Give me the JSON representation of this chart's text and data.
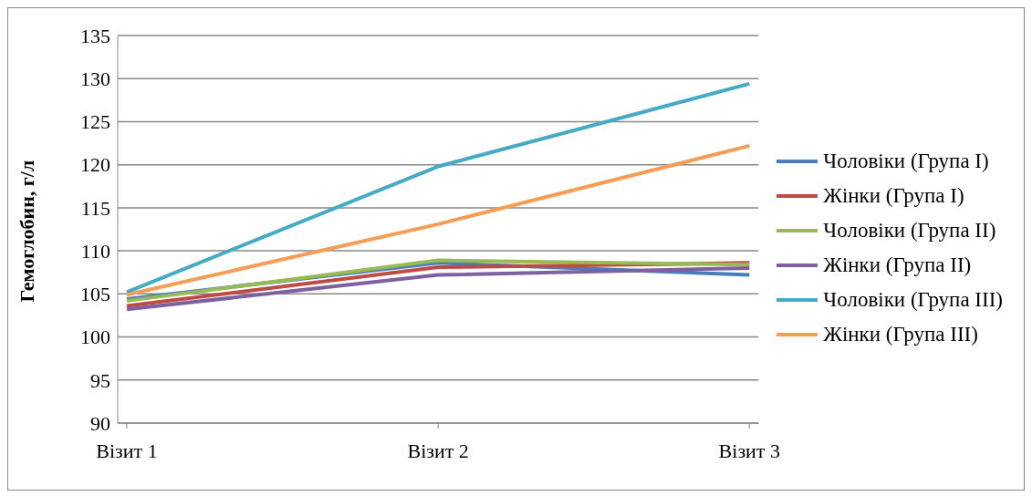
{
  "chart_data": {
    "type": "line",
    "ylabel": "Гемоглобин, г/л",
    "categories": [
      "Візит 1",
      "Візит 2",
      "Візит 3"
    ],
    "series": [
      {
        "name": "Чоловіки (Група I)",
        "color": "#4a7ebb",
        "values": [
          104.4,
          108.6,
          107.2
        ]
      },
      {
        "name": "Жінки (Група I)",
        "color": "#be4b48",
        "values": [
          103.6,
          108.1,
          108.6
        ]
      },
      {
        "name": "Чоловіки (Група II)",
        "color": "#98b954",
        "values": [
          104.2,
          108.9,
          108.4
        ]
      },
      {
        "name": "Жінки (Група II)",
        "color": "#7d60a0",
        "values": [
          103.2,
          107.2,
          108.0
        ]
      },
      {
        "name": "Чоловіки (Група III)",
        "color": "#46aac5",
        "values": [
          105.2,
          119.8,
          129.4
        ]
      },
      {
        "name": "Жінки (Група III)",
        "color": "#f59d56",
        "values": [
          104.9,
          113.1,
          122.2
        ]
      }
    ],
    "ylim": [
      90,
      135
    ],
    "yticks": [
      90,
      95,
      100,
      105,
      110,
      115,
      120,
      125,
      130,
      135
    ],
    "grid": "y",
    "legend": "right",
    "marker": "none",
    "line_style": "solid"
  }
}
